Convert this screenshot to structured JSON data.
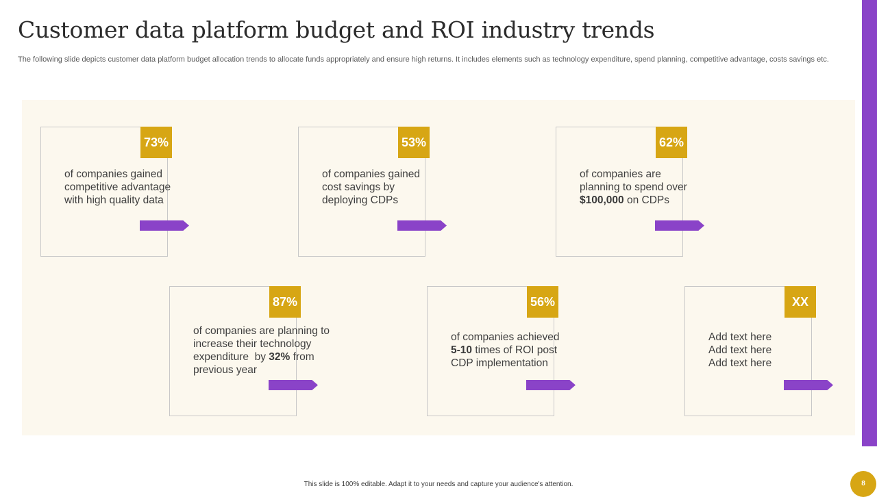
{
  "slide": {
    "title": "Customer data platform budget and ROI industry trends",
    "subtitle": "The following slide depicts customer data platform budget allocation trends to allocate funds appropriately and ensure high returns. It includes elements such as technology expenditure, spend planning, competitive advantage, costs savings etc.",
    "footer_note": "This slide is 100% editable.  Adapt it to your needs and capture your audience's attention.",
    "page_number": "8"
  },
  "colors": {
    "accent_purple": "#8a43c8",
    "accent_gold": "#d7a614",
    "panel_bg": "#fcf8ee"
  },
  "cards": [
    {
      "badge": "73%",
      "lines": [
        "of companies gained",
        "competitive advantage",
        "with high quality data"
      ]
    },
    {
      "badge": "53%",
      "lines": [
        "of companies gained",
        "cost savings by",
        "deploying CDPs"
      ]
    },
    {
      "badge": "62%",
      "line1": "of companies are",
      "line2": "planning to spend over",
      "line3_bold": "$100,000",
      "line3_rest": " on CDPs"
    },
    {
      "badge": "87%",
      "line1": "of companies are planning to",
      "line2": "increase their technology",
      "line3_pre": "expenditure  by ",
      "line3_bold": "32%",
      "line3_post": " from",
      "line4": "previous year"
    },
    {
      "badge": "56%",
      "line1": "of companies achieved",
      "line2_bold": "5-10",
      "line2_rest": " times of ROI post",
      "line3": "CDP implementation"
    },
    {
      "badge": "XX",
      "lines": [
        "Add text here",
        "Add text here",
        "Add text here"
      ]
    }
  ]
}
